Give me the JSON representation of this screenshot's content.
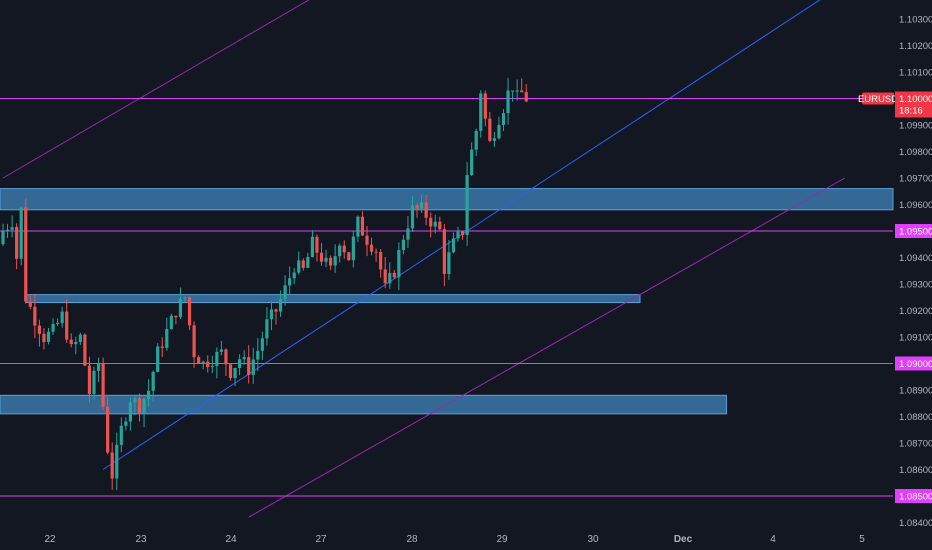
{
  "chart_data": {
    "type": "candlestick",
    "symbol": "EURUSD",
    "last_price": "1.10000",
    "countdown": "18:16",
    "y_ticks": [
      "1.10300",
      "1.10200",
      "1.10100",
      "1.10000",
      "1.09900",
      "1.09800",
      "1.09700",
      "1.09600",
      "1.09500",
      "1.09400",
      "1.09300",
      "1.09200",
      "1.09100",
      "1.09000",
      "1.08900",
      "1.08800",
      "1.08700",
      "1.08600",
      "1.08500",
      "1.08400"
    ],
    "ylim": [
      1.0837,
      1.1036
    ],
    "x_ticks": [
      "22",
      "23",
      "24",
      "27",
      "28",
      "29",
      "30",
      "Dec",
      "4",
      "5"
    ],
    "x_ticks_bold": [
      "Dec"
    ],
    "horizontal_levels": [
      {
        "price": 1.1,
        "label": "1.10000",
        "is_last_price": true
      },
      {
        "price": 1.095,
        "label": "1.09500"
      },
      {
        "price": 1.09,
        "label": "1.09000"
      },
      {
        "price": 1.085,
        "label": "1.08500"
      }
    ],
    "zones": [
      {
        "from_bar": -2,
        "to_bar": 999,
        "low": 1.0958,
        "high": 1.0966
      },
      {
        "from_bar": 5,
        "to_bar": 140,
        "low": 1.0923,
        "high": 1.0926
      },
      {
        "from_bar": -2,
        "to_bar": 159,
        "low": 1.0881,
        "high": 1.0888
      }
    ],
    "trendlines": [
      {
        "color": "blue",
        "from": {
          "bar": 22,
          "price": 1.086
        },
        "to": {
          "bar": 182,
          "price": 1.104
        }
      },
      {
        "color": "purple",
        "from": {
          "bar": 54,
          "price": 1.0842
        },
        "to": {
          "bar": 185,
          "price": 1.097
        }
      },
      {
        "color": "purple",
        "from": {
          "bar": 0,
          "price": 1.097
        },
        "to": {
          "bar": 70,
          "price": 1.104
        }
      }
    ],
    "candles": [],
    "colors": {
      "background": "#131722",
      "bull": "#26a69a",
      "bear": "#ef5350",
      "level_line": "#e040fb",
      "level_tag_bg": "#e040fb",
      "last_price_tag_bg": "#f23645",
      "zone_fill": "#3a78a8",
      "zone_border": "#5aa0d8",
      "trend_blue": "#2962ff",
      "trend_purple": "#9c27b0",
      "axis_text": "#b2b5be"
    }
  }
}
